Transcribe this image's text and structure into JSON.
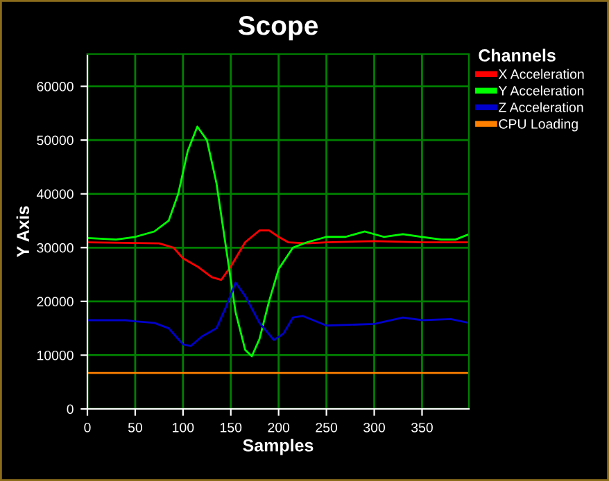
{
  "chart_data": {
    "type": "line",
    "title": "Scope",
    "xlabel": "Samples",
    "ylabel": "Y Axis",
    "legend_title": "Channels",
    "xlim": [
      0,
      399
    ],
    "ylim": [
      0,
      66000
    ],
    "xticks": [
      0,
      50,
      100,
      150,
      200,
      250,
      300,
      350
    ],
    "yticks": [
      0,
      10000,
      20000,
      30000,
      40000,
      50000,
      60000
    ],
    "grid": true,
    "legend": "right",
    "marker": "none",
    "line_style": "solid",
    "series": [
      {
        "name": "X Acceleration",
        "color": "#ff0000",
        "x": [
          0,
          75,
          90,
          100,
          115,
          130,
          140,
          150,
          165,
          180,
          190,
          200,
          210,
          230,
          250,
          300,
          350,
          399
        ],
        "values": [
          31000,
          30800,
          30000,
          28000,
          26500,
          24500,
          24000,
          26500,
          31000,
          33200,
          33200,
          32000,
          31000,
          30800,
          31000,
          31200,
          31000,
          31000
        ]
      },
      {
        "name": "Y Acceleration",
        "color": "#00ff00",
        "x": [
          0,
          30,
          50,
          70,
          85,
          95,
          105,
          115,
          125,
          135,
          145,
          155,
          165,
          172,
          180,
          190,
          200,
          215,
          230,
          250,
          270,
          290,
          310,
          330,
          350,
          370,
          385,
          399
        ],
        "values": [
          31800,
          31500,
          32000,
          33000,
          35000,
          40000,
          48000,
          52500,
          50000,
          42000,
          30000,
          18000,
          11000,
          9800,
          13000,
          20000,
          26000,
          30000,
          31000,
          32000,
          32000,
          33000,
          32000,
          32500,
          32000,
          31500,
          31500,
          32500
        ]
      },
      {
        "name": "Z Acceleration",
        "color": "#0000cc",
        "x": [
          0,
          40,
          50,
          70,
          85,
          100,
          108,
          120,
          135,
          145,
          155,
          165,
          180,
          195,
          205,
          215,
          225,
          250,
          300,
          330,
          350,
          380,
          399
        ],
        "values": [
          16500,
          16500,
          16300,
          16000,
          15000,
          12000,
          11700,
          13500,
          15000,
          19000,
          23500,
          21000,
          16000,
          12800,
          14000,
          17000,
          17300,
          15500,
          15800,
          17000,
          16500,
          16700,
          16000
        ]
      },
      {
        "name": "CPU Loading",
        "color": "#ff8000",
        "x": [
          0,
          399
        ],
        "values": [
          6700,
          6700
        ]
      }
    ]
  }
}
